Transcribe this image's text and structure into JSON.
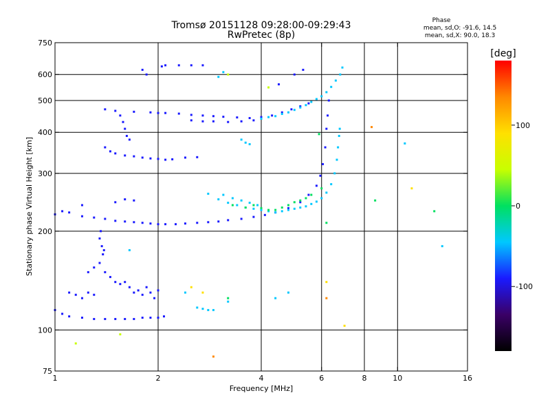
{
  "chart_data": {
    "type": "scatter",
    "title": "Tromsø 20151128 09:28:00-09:29:43",
    "subtitle": "RwPretec (8p)",
    "phase_header": "Phase",
    "phase_stats": [
      "mean, sd,O: -91.6, 14.5",
      "mean, sd,X:  90.0, 18.3"
    ],
    "xlabel": "Frequency [MHz]",
    "ylabel": "Stationary phase Virtual Height [km]",
    "x_scale": "log",
    "y_scale": "log",
    "xlim": [
      1,
      16
    ],
    "ylim": [
      75,
      750
    ],
    "x_ticks": [
      1,
      2,
      4,
      6,
      8,
      10,
      16
    ],
    "y_ticks": [
      75,
      100,
      200,
      300,
      400,
      500,
      600,
      750
    ],
    "grid_x": [
      2,
      4,
      6,
      8,
      10
    ],
    "grid_y": [
      100,
      200,
      300,
      400,
      500,
      600
    ],
    "colorbar": {
      "label": "[deg]",
      "min": -180,
      "max": 180,
      "ticks": [
        100,
        0,
        -100
      ],
      "colors": [
        "#000000",
        "#3a0066",
        "#1a1aff",
        "#00c8ff",
        "#00e060",
        "#c8ff00",
        "#ffe000",
        "#ff8800",
        "#ff0000"
      ]
    },
    "series": [
      {
        "points": [
          [
            1.0,
            115
          ],
          [
            1.05,
            112
          ],
          [
            1.1,
            110
          ],
          [
            1.2,
            109
          ],
          [
            1.3,
            108
          ],
          [
            1.4,
            108
          ],
          [
            1.5,
            108
          ],
          [
            1.6,
            108
          ],
          [
            1.7,
            108
          ],
          [
            1.8,
            109
          ],
          [
            1.9,
            109
          ],
          [
            2.0,
            109
          ],
          [
            2.08,
            110
          ],
          [
            1.0,
            225
          ],
          [
            1.05,
            230
          ],
          [
            1.1,
            228
          ],
          [
            1.2,
            222
          ],
          [
            1.3,
            220
          ],
          [
            1.4,
            218
          ],
          [
            1.5,
            215
          ],
          [
            1.6,
            214
          ],
          [
            1.7,
            213
          ],
          [
            1.8,
            212
          ],
          [
            1.9,
            211
          ],
          [
            2.0,
            210
          ],
          [
            2.1,
            210
          ],
          [
            2.25,
            210
          ],
          [
            2.4,
            211
          ],
          [
            2.6,
            212
          ],
          [
            2.8,
            213
          ],
          [
            3.0,
            214
          ],
          [
            3.2,
            216
          ],
          [
            3.5,
            218
          ],
          [
            3.8,
            221
          ],
          [
            4.1,
            224
          ],
          [
            4.4,
            228
          ],
          [
            4.8,
            235
          ],
          [
            5.2,
            245
          ],
          [
            5.5,
            258
          ],
          [
            5.8,
            275
          ],
          [
            5.95,
            295
          ],
          [
            6.05,
            320
          ],
          [
            6.15,
            360
          ],
          [
            6.2,
            410
          ],
          [
            6.25,
            450
          ],
          [
            6.3,
            500
          ],
          [
            1.4,
            360
          ],
          [
            1.45,
            350
          ],
          [
            1.5,
            345
          ],
          [
            1.6,
            340
          ],
          [
            1.7,
            338
          ],
          [
            1.8,
            335
          ],
          [
            1.9,
            333
          ],
          [
            2.0,
            332
          ],
          [
            2.1,
            330
          ],
          [
            2.2,
            331
          ],
          [
            2.4,
            335
          ],
          [
            2.6,
            336
          ],
          [
            1.4,
            470
          ],
          [
            1.5,
            465
          ],
          [
            1.7,
            462
          ],
          [
            1.9,
            460
          ],
          [
            2.0,
            458
          ],
          [
            2.1,
            458
          ],
          [
            2.3,
            456
          ],
          [
            2.5,
            452
          ],
          [
            2.7,
            450
          ],
          [
            2.9,
            448
          ],
          [
            3.1,
            446
          ],
          [
            3.4,
            444
          ],
          [
            3.7,
            442
          ],
          [
            4.0,
            445
          ],
          [
            4.3,
            450
          ],
          [
            4.6,
            460
          ],
          [
            4.9,
            470
          ],
          [
            5.2,
            480
          ],
          [
            5.5,
            490
          ],
          [
            2.5,
            435
          ],
          [
            2.7,
            432
          ],
          [
            2.9,
            432
          ],
          [
            3.2,
            430
          ],
          [
            3.5,
            432
          ],
          [
            3.8,
            435
          ],
          [
            2.05,
            635
          ],
          [
            2.1,
            640
          ],
          [
            2.3,
            640
          ],
          [
            2.5,
            640
          ],
          [
            2.7,
            640
          ],
          [
            1.25,
            150
          ],
          [
            1.3,
            155
          ],
          [
            1.35,
            160
          ],
          [
            1.4,
            150
          ],
          [
            1.45,
            145
          ],
          [
            1.5,
            140
          ],
          [
            1.55,
            138
          ],
          [
            1.6,
            140
          ],
          [
            1.65,
            135
          ],
          [
            1.7,
            130
          ],
          [
            1.75,
            132
          ],
          [
            1.8,
            128
          ],
          [
            1.85,
            135
          ],
          [
            1.9,
            130
          ],
          [
            1.95,
            125
          ],
          [
            2.0,
            132
          ],
          [
            1.35,
            190
          ],
          [
            1.37,
            180
          ],
          [
            1.39,
            175
          ],
          [
            1.36,
            200
          ],
          [
            1.38,
            170
          ],
          [
            1.1,
            130
          ],
          [
            1.15,
            128
          ],
          [
            1.2,
            125
          ],
          [
            1.25,
            130
          ],
          [
            1.3,
            128
          ],
          [
            1.55,
            450
          ],
          [
            1.58,
            430
          ],
          [
            1.6,
            410
          ],
          [
            1.62,
            390
          ],
          [
            1.65,
            380
          ],
          [
            1.8,
            620
          ],
          [
            1.85,
            600
          ],
          [
            4.5,
            560
          ],
          [
            5.0,
            600
          ],
          [
            5.3,
            620
          ],
          [
            1.2,
            240
          ],
          [
            1.5,
            245
          ],
          [
            1.6,
            250
          ],
          [
            1.7,
            248
          ]
        ]
      },
      {
        "points": [
          [
            2.8,
            260
          ],
          [
            3.0,
            250
          ],
          [
            3.2,
            244
          ],
          [
            3.4,
            240
          ],
          [
            3.6,
            236
          ],
          [
            3.8,
            234
          ],
          [
            4.0,
            232
          ],
          [
            4.2,
            230
          ],
          [
            4.4,
            228
          ],
          [
            4.6,
            230
          ],
          [
            4.8,
            232
          ],
          [
            5.0,
            234
          ],
          [
            5.2,
            236
          ],
          [
            5.4,
            238
          ],
          [
            5.6,
            242
          ],
          [
            5.8,
            246
          ],
          [
            6.0,
            252
          ],
          [
            6.2,
            262
          ],
          [
            6.4,
            278
          ],
          [
            6.55,
            300
          ],
          [
            6.65,
            330
          ],
          [
            6.7,
            360
          ],
          [
            6.75,
            390
          ],
          [
            6.78,
            410
          ],
          [
            3.1,
            258
          ],
          [
            3.3,
            252
          ],
          [
            3.5,
            248
          ],
          [
            3.7,
            244
          ],
          [
            3.9,
            240
          ],
          [
            4.0,
            440
          ],
          [
            4.2,
            445
          ],
          [
            4.4,
            448
          ],
          [
            4.6,
            455
          ],
          [
            4.8,
            460
          ],
          [
            5.0,
            468
          ],
          [
            5.2,
            476
          ],
          [
            5.4,
            484
          ],
          [
            5.6,
            495
          ],
          [
            5.8,
            505
          ],
          [
            6.0,
            515
          ],
          [
            6.2,
            530
          ],
          [
            6.4,
            550
          ],
          [
            6.6,
            575
          ],
          [
            6.8,
            600
          ],
          [
            6.9,
            630
          ],
          [
            3.5,
            380
          ],
          [
            3.6,
            372
          ],
          [
            3.7,
            368
          ],
          [
            2.6,
            117
          ],
          [
            2.7,
            116
          ],
          [
            2.8,
            115
          ],
          [
            2.9,
            115
          ],
          [
            2.4,
            130
          ],
          [
            1.65,
            175
          ],
          [
            3.2,
            122
          ],
          [
            4.4,
            125
          ],
          [
            4.8,
            130
          ],
          [
            3.0,
            590
          ],
          [
            3.1,
            610
          ],
          [
            10.5,
            370
          ],
          [
            13.5,
            180
          ]
        ]
      },
      {
        "points": [
          [
            4.0,
            235
          ],
          [
            4.2,
            232
          ],
          [
            4.4,
            232
          ],
          [
            4.6,
            236
          ],
          [
            4.8,
            240
          ],
          [
            5.0,
            245
          ],
          [
            5.2,
            248
          ],
          [
            5.4,
            252
          ],
          [
            5.6,
            258
          ],
          [
            6.0,
            270
          ],
          [
            3.3,
            240
          ],
          [
            3.6,
            236
          ],
          [
            3.8,
            240
          ],
          [
            3.2,
            125
          ],
          [
            6.2,
            212
          ],
          [
            8.6,
            248
          ],
          [
            12.8,
            230
          ],
          [
            5.9,
            395
          ]
        ]
      },
      {
        "points": [
          [
            1.15,
            91
          ],
          [
            1.55,
            97
          ],
          [
            4.2,
            548
          ],
          [
            3.2,
            600
          ]
        ]
      },
      {
        "points": [
          [
            2.5,
            135
          ],
          [
            2.7,
            130
          ],
          [
            7.0,
            103
          ],
          [
            6.2,
            140
          ],
          [
            11.0,
            270
          ]
        ]
      },
      {
        "points": [
          [
            6.2,
            125
          ],
          [
            2.9,
            83
          ],
          [
            8.4,
            415
          ]
        ]
      }
    ]
  }
}
